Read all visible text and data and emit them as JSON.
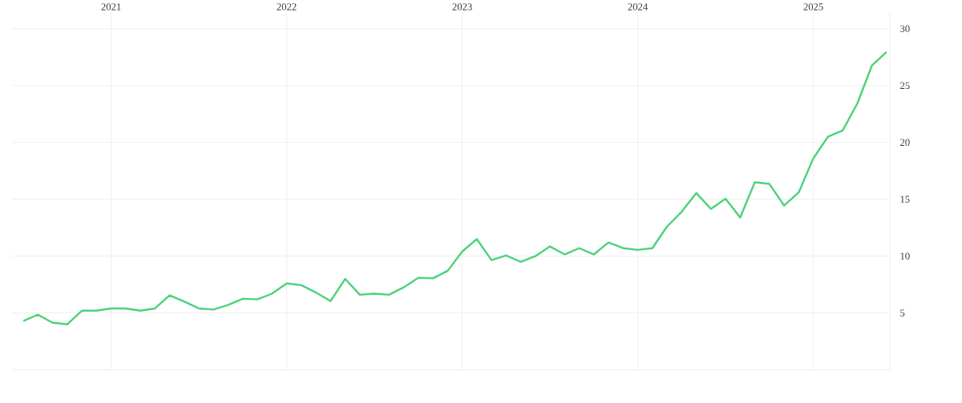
{
  "chart_data": {
    "type": "line",
    "color": "#4cd27a",
    "x": [
      "2020-07",
      "2020-08",
      "2020-09",
      "2020-10",
      "2020-11",
      "2020-12",
      "2021-01",
      "2021-02",
      "2021-03",
      "2021-04",
      "2021-05",
      "2021-06",
      "2021-07",
      "2021-08",
      "2021-09",
      "2021-10",
      "2021-11",
      "2021-12",
      "2022-01",
      "2022-02",
      "2022-03",
      "2022-04",
      "2022-05",
      "2022-06",
      "2022-07",
      "2022-08",
      "2022-09",
      "2022-10",
      "2022-11",
      "2022-12",
      "2023-01",
      "2023-02",
      "2023-03",
      "2023-04",
      "2023-05",
      "2023-06",
      "2023-07",
      "2023-08",
      "2023-09",
      "2023-10",
      "2023-11",
      "2023-12",
      "2024-01",
      "2024-02",
      "2024-03",
      "2024-04",
      "2024-05",
      "2024-06",
      "2024-07",
      "2024-08",
      "2024-09",
      "2024-10",
      "2024-11",
      "2024-12",
      "2025-01",
      "2025-02",
      "2025-03",
      "2025-04",
      "2025-05",
      "2025-06"
    ],
    "values": [
      4.3,
      4.85,
      4.15,
      4.0,
      5.2,
      5.2,
      5.4,
      5.4,
      5.2,
      5.4,
      6.55,
      6.0,
      5.4,
      5.3,
      5.7,
      6.25,
      6.2,
      6.7,
      7.6,
      7.45,
      6.8,
      6.05,
      8.0,
      6.6,
      6.7,
      6.6,
      7.25,
      8.1,
      8.05,
      8.7,
      10.4,
      11.5,
      9.65,
      10.05,
      9.5,
      10.0,
      10.85,
      10.15,
      10.7,
      10.15,
      11.2,
      10.7,
      10.55,
      10.7,
      12.6,
      13.9,
      15.55,
      14.15,
      15.05,
      13.4,
      16.5,
      16.35,
      14.45,
      15.6,
      18.6,
      20.5,
      21.05,
      23.4,
      26.75,
      27.95
    ],
    "xlim": [
      "2020-06-08",
      "2025-06-08"
    ],
    "xticks": [
      "2021",
      "2022",
      "2023",
      "2024",
      "2025"
    ],
    "ylim": [
      0,
      31.5
    ],
    "yticks": [
      {
        "value": 0,
        "label": null
      },
      5,
      10,
      15,
      20,
      25,
      30
    ],
    "grid": true,
    "marker": "none",
    "line_style": "solid"
  }
}
